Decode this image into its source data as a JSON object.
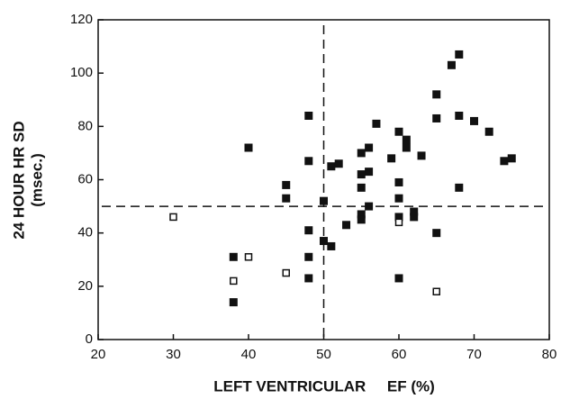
{
  "chart_data": {
    "type": "scatter",
    "xlabel": "LEFT VENTRICULAR     EF (%)",
    "ylabel": [
      "24 HOUR HR SD",
      "(msec.)"
    ],
    "xlim": [
      20,
      80
    ],
    "xticks": [
      20,
      30,
      40,
      50,
      60,
      70,
      80
    ],
    "ylim": [
      0,
      120
    ],
    "yticks": [
      0,
      20,
      40,
      60,
      80,
      100,
      120
    ],
    "vlines": [
      50
    ],
    "hlines": [
      50
    ],
    "series": [
      {
        "color": "#111111",
        "marker": "filled",
        "x": [
          38,
          38,
          40,
          45,
          45,
          48,
          48,
          48,
          48,
          48,
          50,
          50,
          51,
          51,
          52,
          53,
          55,
          55,
          55,
          55,
          55,
          56,
          56,
          56,
          57,
          59,
          60,
          60,
          60,
          60,
          60,
          61,
          61,
          62,
          62,
          63,
          65,
          65,
          65,
          67,
          68,
          68,
          68,
          70,
          72,
          74,
          75
        ],
        "values": [
          31,
          14,
          72,
          58,
          53,
          84,
          67,
          41,
          31,
          23,
          52,
          37,
          35,
          65,
          66,
          43,
          70,
          62,
          57,
          47,
          45,
          72,
          63,
          50,
          81,
          68,
          78,
          59,
          53,
          46,
          23,
          75,
          72,
          48,
          46,
          69,
          92,
          83,
          40,
          103,
          107,
          84,
          57,
          82,
          78,
          67,
          68
        ]
      },
      {
        "color": "#111111",
        "marker": "open",
        "x": [
          30,
          38,
          40,
          45,
          60,
          65
        ],
        "values": [
          46,
          22,
          31,
          25,
          44,
          18
        ]
      }
    ]
  }
}
